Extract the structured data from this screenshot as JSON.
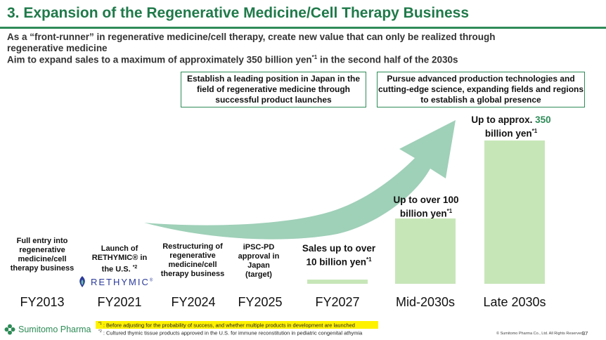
{
  "title": "3. Expansion of the Regenerative Medicine/Cell Therapy Business",
  "subtitle": {
    "line1": "As a “front-runner” in  regenerative medicine/cell therapy, create new value that can only be realized through",
    "line2": "regenerative medicine",
    "line3": "Aim to expand sales to a maximum of approximately 350 billion yen",
    "line3_sup": "*1",
    "line3_end": " in the second half of the 2030s"
  },
  "boxes": {
    "left": "Establish a leading position in Japan in the field of regenerative medicine through successful product launches",
    "right": "Pursue advanced production technologies and cutting-edge science, expanding fields and regions to establish a global presence"
  },
  "timeline": [
    {
      "label": "Full entry into regenerative medicine/cell therapy business",
      "fy": "FY2013"
    },
    {
      "label": "Launch of RETHYMIC® in the U.S.",
      "label_sup": "*2",
      "fy": "FY2021"
    },
    {
      "label": "Restructuring of regenerative medicine/cell therapy business",
      "fy": "FY2024"
    },
    {
      "label": "iPSC-PD approval in Japan (target)",
      "fy": "FY2025"
    }
  ],
  "sales": [
    {
      "fy": "FY2027",
      "label_pre": "Sales up to over 10 billion yen",
      "label_highlight": "",
      "label_post": "",
      "sup": "*1"
    },
    {
      "fy": "Mid-2030s",
      "label_pre": "Up to over 100 billion yen",
      "label_highlight": "",
      "label_post": "",
      "sup": "*1"
    },
    {
      "fy": "Late 2030s",
      "label_pre": "Up to approx. ",
      "label_highlight": "350",
      "label_post": " billion yen",
      "sup": "*1"
    }
  ],
  "chart_data": {
    "type": "bar",
    "categories": [
      "FY2027",
      "Mid-2030s",
      "Late 2030s"
    ],
    "values": [
      10,
      100,
      350
    ],
    "ylabel": ""
  },
  "rethymic_logo": {
    "text": "RETHYMIC",
    "mark": "®"
  },
  "company_logo": "Sumitomo Pharma",
  "footnotes": {
    "fn1_mark": "*1",
    "fn1": " : Before adjusting for the probability of success, and whether multiple products in development are launched",
    "fn2_mark": "*2",
    "fn2": " : Cultured thymic tissue products approved in the U.S. for immune reconstitution in pediatric congenital athymia"
  },
  "copyright": "© Sumitomo Pharma Co., Ltd. All Rights Reserved.",
  "page_number": "37",
  "colors": {
    "brand_green": "#2e8b57",
    "bar_green": "#c7e6b8",
    "arrow_green": "#9fd0b8",
    "highlight": "#fff200"
  }
}
